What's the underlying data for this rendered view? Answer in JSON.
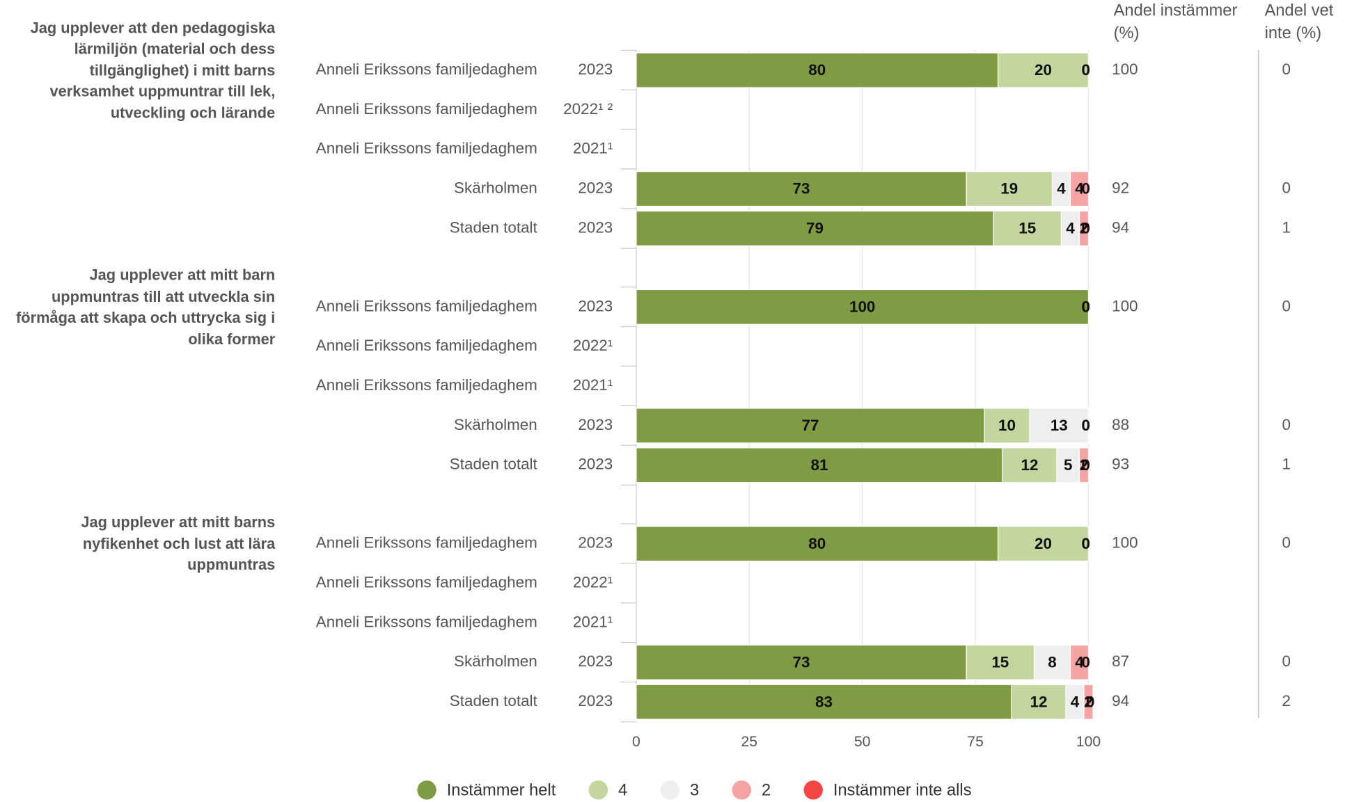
{
  "chart_data": {
    "type": "bar",
    "orientation": "horizontal",
    "stacked": true,
    "groups": [
      {
        "label": "Jag upplever att den pedagogiska lärmiljön (material och dess tillgänglighet) i mitt barns verksamhet uppmuntrar till lek, utveckling och lärande",
        "categories": [
          "Anneli Erikssons familjedaghem",
          "Anneli Erikssons familjedaghem",
          "Anneli Erikssons familjedaghem",
          "Skärholmen",
          "Staden totalt"
        ],
        "years": [
          "2023",
          "2022¹ ²",
          "2021¹",
          "2023",
          "2023"
        ]
      },
      {
        "label": "Jag upplever att mitt barn uppmuntras till att utveckla sin förmåga att skapa och uttrycka sig i olika former",
        "categories": [
          "Anneli Erikssons familjedaghem",
          "Anneli Erikssons familjedaghem",
          "Anneli Erikssons familjedaghem",
          "Skärholmen",
          "Staden totalt"
        ],
        "years": [
          "2023",
          "2022¹",
          "2021¹",
          "2023",
          "2023"
        ]
      },
      {
        "label": "Jag upplever att mitt barns nyfikenhet och lust att lära uppmuntras",
        "categories": [
          "Anneli Erikssons familjedaghem",
          "Anneli Erikssons familjedaghem",
          "Anneli Erikssons familjedaghem",
          "Skärholmen",
          "Staden totalt"
        ],
        "years": [
          "2023",
          "2022¹",
          "2021¹",
          "2023",
          "2023"
        ]
      }
    ],
    "series": [
      {
        "name": "Instämmer helt",
        "color": "#7f9c45",
        "values": [
          [
            80,
            null,
            null,
            73,
            79
          ],
          [
            100,
            null,
            null,
            77,
            81
          ],
          [
            80,
            null,
            null,
            73,
            83
          ]
        ]
      },
      {
        "name": "4",
        "color": "#c3d69f",
        "values": [
          [
            20,
            null,
            null,
            19,
            15
          ],
          [
            0,
            null,
            null,
            10,
            12
          ],
          [
            20,
            null,
            null,
            15,
            12
          ]
        ]
      },
      {
        "name": "3",
        "color": "#eeeeee",
        "values": [
          [
            0,
            null,
            null,
            4,
            4
          ],
          [
            0,
            null,
            null,
            13,
            5
          ],
          [
            0,
            null,
            null,
            8,
            4
          ]
        ]
      },
      {
        "name": "2",
        "color": "#f5a3a3",
        "values": [
          [
            0,
            null,
            null,
            4,
            2
          ],
          [
            0,
            null,
            null,
            0,
            2
          ],
          [
            0,
            null,
            null,
            4,
            2
          ]
        ]
      },
      {
        "name": "Instämmer inte alls",
        "color": "#f44444",
        "values": [
          [
            0,
            null,
            null,
            0,
            0
          ],
          [
            0,
            null,
            null,
            0,
            0
          ],
          [
            0,
            null,
            null,
            0,
            0
          ]
        ]
      }
    ],
    "columns": [
      {
        "label": "Andel instämmer (%)",
        "values": [
          [
            100,
            null,
            null,
            92,
            94
          ],
          [
            100,
            null,
            null,
            88,
            93
          ],
          [
            100,
            null,
            null,
            87,
            94
          ]
        ]
      },
      {
        "label": "Andel vet inte (%)",
        "values": [
          [
            0,
            null,
            null,
            0,
            1
          ],
          [
            0,
            null,
            null,
            0,
            1
          ],
          [
            0,
            null,
            null,
            0,
            2
          ]
        ]
      }
    ],
    "xlim": [
      0,
      100
    ],
    "xticks": [
      0,
      25,
      50,
      75,
      100
    ],
    "grid": true
  }
}
